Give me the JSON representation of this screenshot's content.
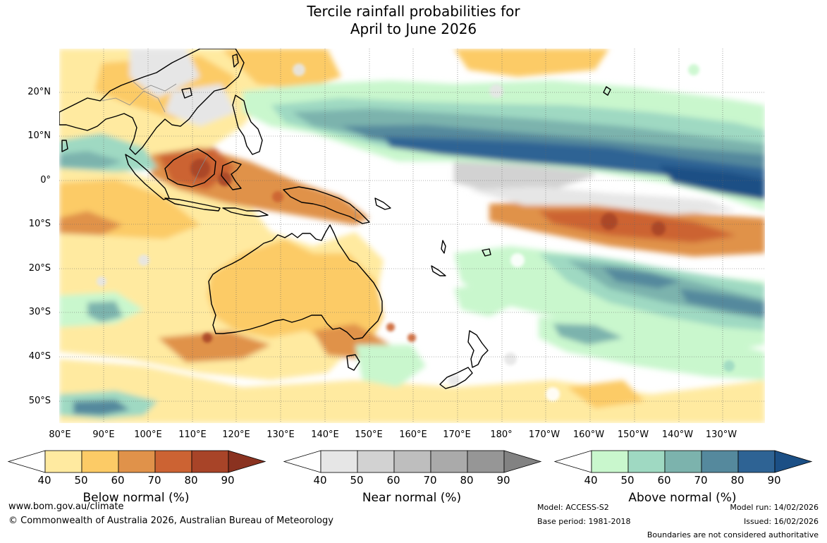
{
  "title": {
    "line1": "Tercile rainfall probabilities for",
    "line2": "April to June 2026"
  },
  "lat_labels": [
    "20°N",
    "10°N",
    "0°",
    "10°S",
    "20°S",
    "30°S",
    "40°S",
    "50°S"
  ],
  "lon_labels": [
    "80°E",
    "90°E",
    "100°E",
    "110°E",
    "120°E",
    "130°E",
    "140°E",
    "150°E",
    "160°E",
    "170°E",
    "180°",
    "170°W",
    "160°W",
    "150°W",
    "140°W",
    "130°W"
  ],
  "legend": {
    "below": {
      "label": "Below normal (%)",
      "ticks": [
        "40",
        "50",
        "60",
        "70",
        "80",
        "90"
      ],
      "colors": [
        "#ffffff",
        "#ffeaa0",
        "#fccb66",
        "#e0924a",
        "#cc6333",
        "#a84428",
        "#8a3220"
      ]
    },
    "near": {
      "label": "Near normal (%)",
      "ticks": [
        "40",
        "50",
        "60",
        "70",
        "80",
        "90"
      ],
      "colors": [
        "#ffffff",
        "#e6e6e6",
        "#d2d2d2",
        "#bebebe",
        "#aaaaaa",
        "#969696",
        "#828282"
      ]
    },
    "above": {
      "label": "Above normal (%)",
      "ticks": [
        "40",
        "50",
        "60",
        "70",
        "80",
        "90"
      ],
      "colors": [
        "#ffffff",
        "#c9f7cd",
        "#9fd9c2",
        "#7cb3ad",
        "#55899d",
        "#2e6394",
        "#1b4f85"
      ]
    }
  },
  "footer": {
    "website": "www.bom.gov.au/climate",
    "copyright": "© Commonwealth of Australia 2026, Australian Bureau of Meteorology",
    "model": "Model: ACCESS-S2",
    "base_period": "Base period: 1981-2018",
    "model_run": "Model run: 14/02/2026",
    "issued": "Issued: 16/02/2026",
    "disclaimer": "Boundaries are not considered authoritative"
  }
}
